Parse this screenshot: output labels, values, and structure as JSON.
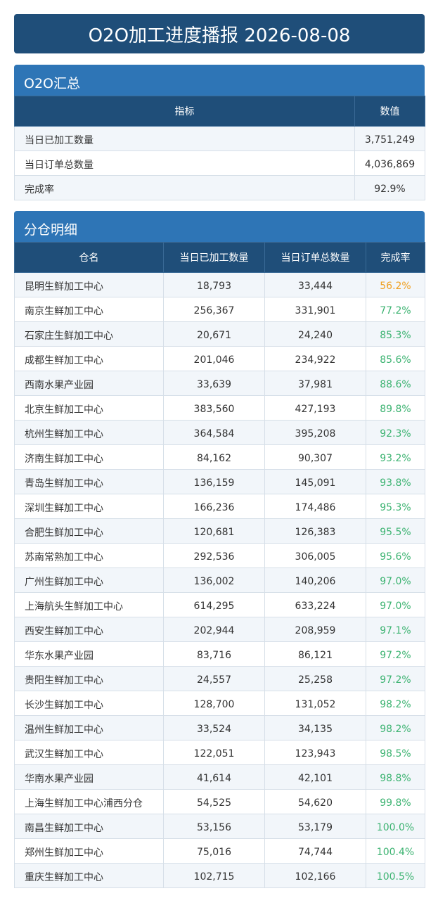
{
  "header": {
    "title": "O2O加工进度播报 2026-08-08"
  },
  "summary": {
    "title": "O2O汇总",
    "columns": [
      "指标",
      "数值"
    ],
    "rows": [
      [
        "当日已加工数量",
        "3,751,249"
      ],
      [
        "当日订单总数量",
        "4,036,869"
      ],
      [
        "完成率",
        "92.9%"
      ]
    ]
  },
  "detail": {
    "title": "分仓明细",
    "columns": [
      "仓名",
      "当日已加工数量",
      "当日订单总数量",
      "完成率"
    ],
    "rows": [
      [
        "昆明生鲜加工中心",
        "18,793",
        "33,444",
        "56.2%"
      ],
      [
        "南京生鲜加工中心",
        "256,367",
        "331,901",
        "77.2%"
      ],
      [
        "石家庄生鲜加工中心",
        "20,671",
        "24,240",
        "85.3%"
      ],
      [
        "成都生鲜加工中心",
        "201,046",
        "234,922",
        "85.6%"
      ],
      [
        "西南水果产业园",
        "33,639",
        "37,981",
        "88.6%"
      ],
      [
        "北京生鲜加工中心",
        "383,560",
        "427,193",
        "89.8%"
      ],
      [
        "杭州生鲜加工中心",
        "364,584",
        "395,208",
        "92.3%"
      ],
      [
        "济南生鲜加工中心",
        "84,162",
        "90,307",
        "93.2%"
      ],
      [
        "青岛生鲜加工中心",
        "136,159",
        "145,091",
        "93.8%"
      ],
      [
        "深圳生鲜加工中心",
        "166,236",
        "174,486",
        "95.3%"
      ],
      [
        "合肥生鲜加工中心",
        "120,681",
        "126,383",
        "95.5%"
      ],
      [
        "苏南常熟加工中心",
        "292,536",
        "306,005",
        "95.6%"
      ],
      [
        "广州生鲜加工中心",
        "136,002",
        "140,206",
        "97.0%"
      ],
      [
        "上海航头生鲜加工中心",
        "614,295",
        "633,224",
        "97.0%"
      ],
      [
        "西安生鲜加工中心",
        "202,944",
        "208,959",
        "97.1%"
      ],
      [
        "华东水果产业园",
        "83,716",
        "86,121",
        "97.2%"
      ],
      [
        "贵阳生鲜加工中心",
        "24,557",
        "25,258",
        "97.2%"
      ],
      [
        "长沙生鲜加工中心",
        "128,700",
        "131,052",
        "98.2%"
      ],
      [
        "温州生鲜加工中心",
        "33,524",
        "34,135",
        "98.2%"
      ],
      [
        "武汉生鲜加工中心",
        "122,051",
        "123,943",
        "98.5%"
      ],
      [
        "华南水果产业园",
        "41,614",
        "42,101",
        "98.8%"
      ],
      [
        "上海生鲜加工中心浦西分仓",
        "54,525",
        "54,620",
        "99.8%"
      ],
      [
        "南昌生鲜加工中心",
        "53,156",
        "53,179",
        "100.0%"
      ],
      [
        "郑州生鲜加工中心",
        "75,016",
        "74,744",
        "100.4%"
      ],
      [
        "重庆生鲜加工中心",
        "102,715",
        "102,166",
        "100.5%"
      ]
    ],
    "rate_colors": [
      "#f0a020",
      "#3cb371",
      "#3cb371",
      "#3cb371",
      "#3cb371",
      "#3cb371",
      "#3cb371",
      "#3cb371",
      "#3cb371",
      "#3cb371",
      "#3cb371",
      "#3cb371",
      "#3cb371",
      "#3cb371",
      "#3cb371",
      "#3cb371",
      "#3cb371",
      "#3cb371",
      "#3cb371",
      "#3cb371",
      "#3cb371",
      "#3cb371",
      "#3cb371",
      "#3cb371",
      "#3cb371"
    ]
  }
}
